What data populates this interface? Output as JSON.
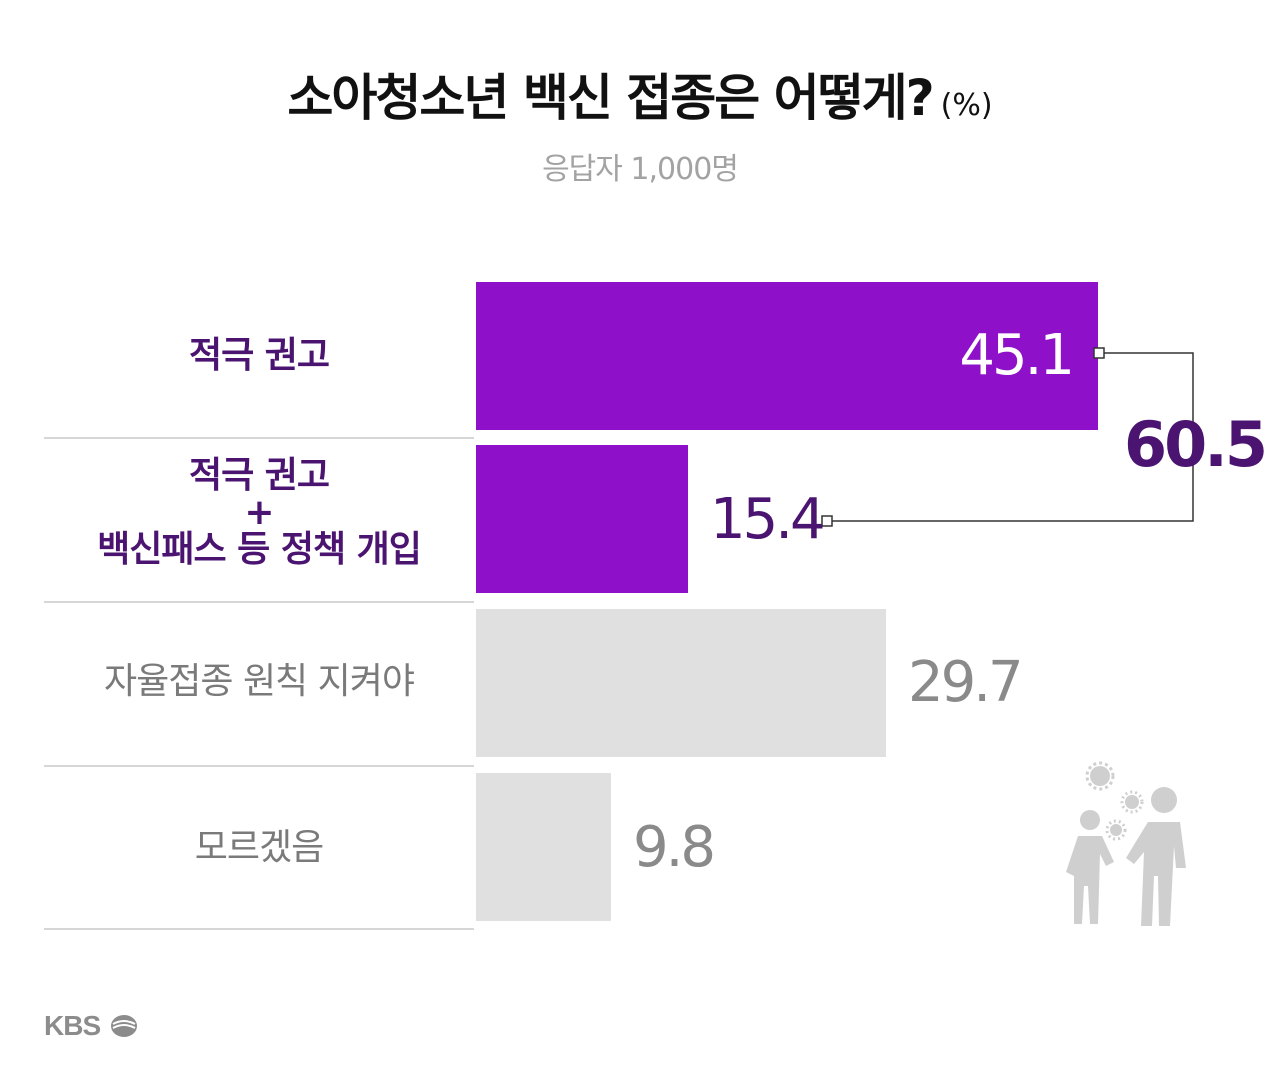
{
  "header": {
    "title": "소아청소년 백신 접종은 어떻게?",
    "unit": "(%)",
    "subtitle": "응답자 1,000명"
  },
  "chart_data": {
    "type": "bar",
    "orientation": "horizontal",
    "title": "소아청소년 백신 접종은 어떻게?",
    "unit": "(%)",
    "categories": [
      "적극 권고",
      "적극 권고\n+\n백신패스 등 정책 개입",
      "자율접종 원칙 지켜야",
      "모르겠음"
    ],
    "values": [
      45.1,
      15.4,
      29.7,
      9.8
    ],
    "value_labels": [
      "45.1",
      "15.4",
      "29.7",
      "9.8"
    ],
    "bracket_total": {
      "value": 60.5,
      "label": "60.5",
      "spans": [
        "적극 권고",
        "적극 권고\n+\n백신패스 등 정책 개입"
      ]
    },
    "xlim": [
      0,
      100
    ],
    "colors": {
      "highlight": "#8e10c8",
      "neutral": "#e0e0e0",
      "highlight_text": "#4a1470",
      "neutral_text": "#8a8a8a"
    },
    "grid": false,
    "legend": "none"
  },
  "rows": [
    {
      "label_lines": [
        "적극 권고"
      ],
      "value_text": "45.1",
      "style": "hl"
    },
    {
      "label_lines": [
        "적극 권고",
        "+",
        "백신패스 등 정책 개입"
      ],
      "value_text": "15.4",
      "style": "hl"
    },
    {
      "label_lines": [
        "자율접종 원칙 지켜야"
      ],
      "value_text": "29.7",
      "style": "gray"
    },
    {
      "label_lines": [
        "모르겠음"
      ],
      "value_text": "9.8",
      "style": "gray"
    }
  ],
  "footer": {
    "logo_text": "KBS"
  },
  "icons": {
    "illustration": "parent-child-virus-icon",
    "logo": "kbs-logo-icon"
  }
}
